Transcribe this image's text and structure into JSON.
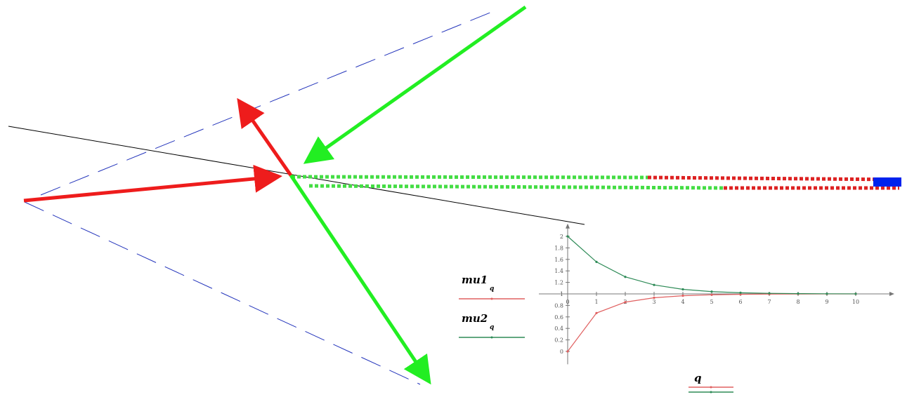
{
  "diagram": {
    "colors": {
      "red_vector": "#ee1c1c",
      "green_vector": "#22ee22",
      "dash_line": "#2233bb",
      "black_line": "#000000",
      "blue_marker": "#0022ee",
      "mu1_curve": "#e06060",
      "mu2_curve": "#2e8b57"
    }
  },
  "legend": {
    "mu1": {
      "name": "mu1",
      "sub": "q"
    },
    "mu2": {
      "name": "mu2",
      "sub": "q"
    },
    "axis_var": "q"
  },
  "chart_data": {
    "type": "line",
    "x": [
      0,
      1,
      2,
      3,
      4,
      5,
      6,
      7,
      8,
      9,
      10
    ],
    "xticks": [
      "0",
      "1",
      "2",
      "3",
      "4",
      "5",
      "6",
      "7",
      "8",
      "9",
      "10"
    ],
    "yticks": [
      "0",
      "0.2",
      "0.4",
      "0.6",
      "0.8",
      "1",
      "1.2",
      "1.4",
      "1.6",
      "1.8",
      "2"
    ],
    "xlim": [
      0,
      11
    ],
    "ylim": [
      -0.2,
      2.1
    ],
    "series": [
      {
        "name": "mu1",
        "color": "#e06060",
        "values": [
          0,
          0.667,
          0.857,
          0.933,
          0.968,
          0.984,
          0.992,
          0.996,
          0.998,
          0.999,
          1.0
        ]
      },
      {
        "name": "mu2",
        "color": "#2e8b57",
        "values": [
          2.0,
          1.556,
          1.296,
          1.156,
          1.079,
          1.04,
          1.02,
          1.01,
          1.005,
          1.002,
          1.001
        ]
      }
    ]
  }
}
